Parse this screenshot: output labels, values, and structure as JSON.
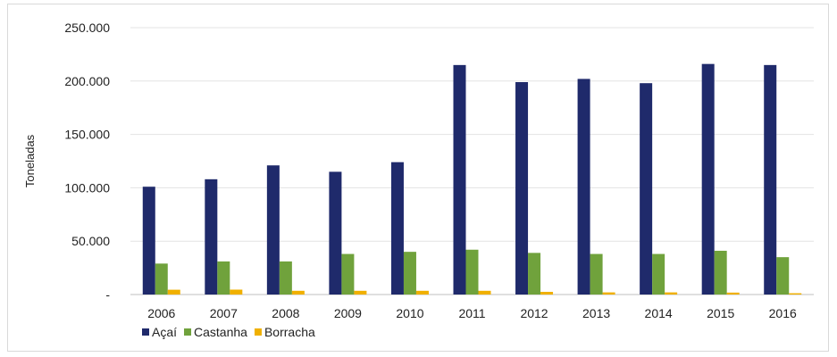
{
  "chart_data": {
    "type": "bar",
    "title": "",
    "xlabel": "",
    "ylabel": "Toneladas",
    "ylim": [
      0,
      250000
    ],
    "yticks": [
      0,
      50000,
      100000,
      150000,
      200000,
      250000
    ],
    "ytick_labels": [
      "-",
      "50.000",
      "100.000",
      "150.000",
      "200.000",
      "250.000"
    ],
    "grid": true,
    "legend_position": "bottom-left",
    "categories": [
      "2006",
      "2007",
      "2008",
      "2009",
      "2010",
      "2011",
      "2012",
      "2013",
      "2014",
      "2015",
      "2016"
    ],
    "series": [
      {
        "name": "Açaí",
        "color": "#1f2a6b",
        "values": [
          101000,
          108000,
          121000,
          115000,
          124000,
          215000,
          199000,
          202000,
          198000,
          216000,
          215000
        ]
      },
      {
        "name": "Castanha",
        "color": "#70a23c",
        "values": [
          29000,
          31000,
          31000,
          38000,
          40000,
          42000,
          39000,
          38000,
          38000,
          41000,
          35000
        ]
      },
      {
        "name": "Borracha",
        "color": "#f0b000",
        "values": [
          4500,
          4600,
          3500,
          3500,
          3500,
          3500,
          2500,
          2000,
          2000,
          1800,
          1200
        ]
      }
    ]
  }
}
